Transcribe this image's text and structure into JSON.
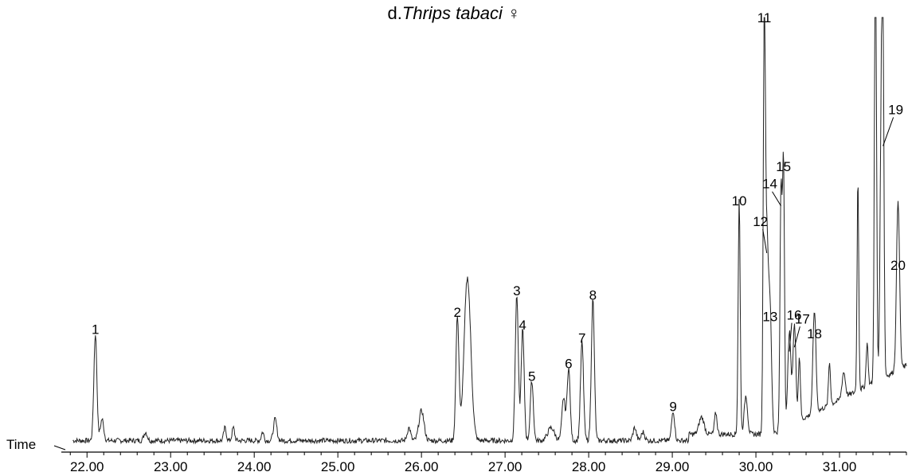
{
  "chart_data": {
    "type": "line",
    "title_prefix": "d.",
    "title_species": "Thrips tabaci",
    "title_symbol": "♀",
    "xlabel": "Time",
    "xlim": [
      21.75,
      31.8
    ],
    "xticks": [
      "22.00",
      "23.00",
      "24.00",
      "25.00",
      "26.00",
      "27.00",
      "28.00",
      "29.00",
      "30.00",
      "31.00"
    ],
    "ylim": [
      0,
      100
    ],
    "peaks": [
      {
        "label": "1",
        "x": 22.1,
        "h": 25
      },
      {
        "label": "2",
        "x": 26.43,
        "h": 29
      },
      {
        "label": "3",
        "x": 27.14,
        "h": 34
      },
      {
        "label": "4",
        "x": 27.21,
        "h": 26
      },
      {
        "label": "5",
        "x": 27.32,
        "h": 14
      },
      {
        "label": "6",
        "x": 27.76,
        "h": 17
      },
      {
        "label": "7",
        "x": 27.92,
        "h": 23
      },
      {
        "label": "8",
        "x": 28.05,
        "h": 33
      },
      {
        "label": "9",
        "x": 29.01,
        "h": 7
      },
      {
        "label": "10",
        "x": 29.8,
        "h": 55
      },
      {
        "label": "11",
        "x": 30.1,
        "h": 96
      },
      {
        "label": "12",
        "x": 30.13,
        "h": 45
      },
      {
        "label": "13",
        "x": 30.17,
        "h": 28
      },
      {
        "label": "14",
        "x": 30.3,
        "h": 56
      },
      {
        "label": "15",
        "x": 30.33,
        "h": 63
      },
      {
        "label": "16",
        "x": 30.4,
        "h": 22
      },
      {
        "label": "17",
        "x": 30.46,
        "h": 23
      },
      {
        "label": "18",
        "x": 30.7,
        "h": 24
      },
      {
        "label": "19",
        "x": 31.52,
        "h": 70
      },
      {
        "label": "20",
        "x": 31.7,
        "h": 40
      }
    ]
  }
}
